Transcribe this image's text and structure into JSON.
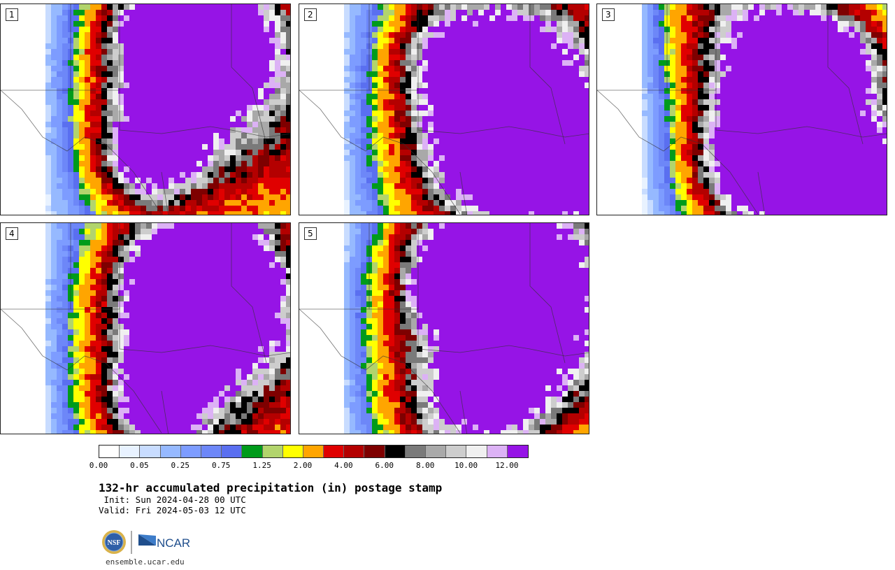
{
  "panels": [
    {
      "label": "1"
    },
    {
      "label": "2"
    },
    {
      "label": "3"
    },
    {
      "label": "4"
    },
    {
      "label": "5"
    }
  ],
  "colorbar": {
    "colors": [
      "#ffffff",
      "#e8f2ff",
      "#c8dcff",
      "#96b9ff",
      "#7d9cff",
      "#6d87f8",
      "#5a6ff0",
      "#009b1b",
      "#b2d46c",
      "#ffff00",
      "#ffa500",
      "#e00000",
      "#b40000",
      "#7e0000",
      "#000000",
      "#7a7a7a",
      "#a9a9a9",
      "#cdcdcd",
      "#f0f0f0",
      "#dcb2f5",
      "#9614e6"
    ],
    "tick_labels": [
      "0.00",
      "0.05",
      "0.25",
      "0.75",
      "1.25",
      "2.00",
      "4.00",
      "6.00",
      "8.00",
      "10.00",
      "12.00"
    ]
  },
  "title": "132-hr accumulated precipitation (in) postage stamp",
  "init_text": " Init: Sun 2024-04-28 00 UTC",
  "valid_text": "Valid: Fri 2024-05-03 12 UTC",
  "logos": {
    "nsf": "NSF",
    "ncar": "NCAR"
  },
  "site": "ensemble.ucar.edu"
}
